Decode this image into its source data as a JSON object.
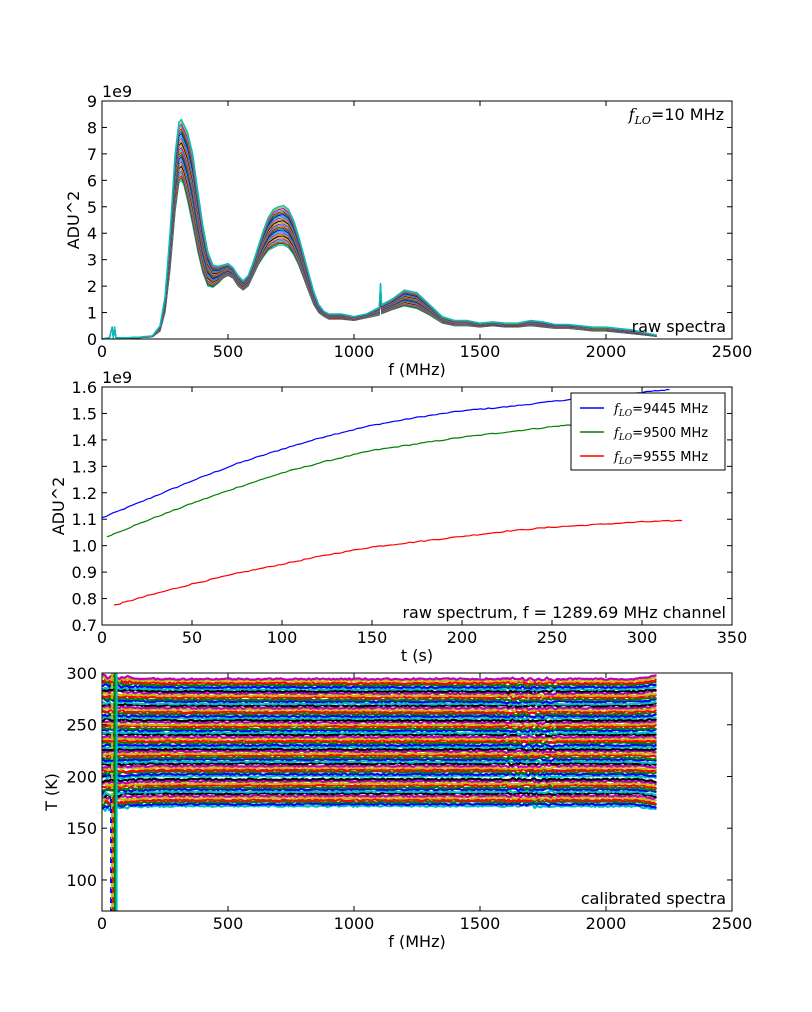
{
  "chart_data": [
    {
      "type": "line",
      "subtitle": "",
      "xlabel": "f (MHz)",
      "ylabel": "ADU^2",
      "y_exponent_label": "1e9",
      "xlim": [
        0,
        2500
      ],
      "ylim": [
        0,
        9
      ],
      "xticks": [
        "0",
        "500",
        "1000",
        "1500",
        "2000",
        "2500"
      ],
      "yticks": [
        "0",
        "1",
        "2",
        "3",
        "4",
        "5",
        "6",
        "7",
        "8",
        "9"
      ],
      "annotations": {
        "top_right_symbol": "f",
        "top_right_subscript": "LO",
        "top_right_text": "=10 MHz",
        "bottom_right": "raw spectra"
      },
      "grid": false,
      "note": "Many overlapping spectra (one per measurement), values in units of 1e9 ADU^2; envelope given by min and max series.",
      "x": [
        0,
        30,
        40,
        45,
        50,
        55,
        60,
        100,
        150,
        200,
        230,
        250,
        270,
        290,
        305,
        315,
        325,
        340,
        360,
        380,
        400,
        420,
        440,
        460,
        480,
        500,
        520,
        540,
        560,
        580,
        600,
        620,
        640,
        660,
        680,
        700,
        720,
        740,
        760,
        780,
        800,
        820,
        840,
        860,
        880,
        900,
        950,
        1000,
        1050,
        1100,
        1105,
        1110,
        1150,
        1200,
        1250,
        1300,
        1350,
        1400,
        1450,
        1500,
        1550,
        1600,
        1650,
        1700,
        1750,
        1800,
        1850,
        1900,
        1950,
        2000,
        2050,
        2100,
        2150,
        2200
      ],
      "series": [
        {
          "values": [
            0.0,
            0.05,
            0.45,
            0.05,
            0.45,
            0.05,
            0.05,
            0.05,
            0.05,
            0.08,
            0.3,
            1.0,
            2.6,
            4.8,
            5.9,
            6.0,
            5.8,
            5.2,
            4.3,
            3.3,
            2.5,
            2.0,
            1.95,
            2.1,
            2.3,
            2.4,
            2.3,
            2.0,
            1.85,
            2.0,
            2.4,
            2.8,
            3.1,
            3.35,
            3.45,
            3.55,
            3.55,
            3.45,
            3.2,
            2.8,
            2.3,
            1.8,
            1.3,
            1.0,
            0.85,
            0.75,
            0.75,
            0.7,
            0.8,
            0.9,
            1.8,
            0.95,
            1.1,
            1.25,
            1.15,
            0.9,
            0.6,
            0.5,
            0.5,
            0.45,
            0.5,
            0.45,
            0.45,
            0.5,
            0.45,
            0.4,
            0.4,
            0.35,
            0.3,
            0.3,
            0.25,
            0.2,
            0.15,
            0.1
          ]
        },
        {
          "values": [
            0.0,
            0.05,
            0.45,
            0.05,
            0.45,
            0.05,
            0.05,
            0.05,
            0.07,
            0.12,
            0.5,
            1.6,
            4.0,
            7.0,
            8.2,
            8.3,
            8.1,
            7.8,
            7.0,
            5.6,
            4.3,
            3.3,
            2.8,
            2.75,
            2.8,
            2.85,
            2.7,
            2.4,
            2.2,
            2.4,
            2.9,
            3.5,
            4.1,
            4.6,
            4.9,
            5.0,
            5.05,
            4.9,
            4.5,
            3.9,
            3.2,
            2.5,
            1.8,
            1.3,
            1.05,
            0.95,
            0.95,
            0.85,
            0.95,
            1.2,
            2.1,
            1.3,
            1.5,
            1.85,
            1.75,
            1.3,
            0.85,
            0.7,
            0.7,
            0.6,
            0.65,
            0.6,
            0.6,
            0.7,
            0.65,
            0.55,
            0.55,
            0.5,
            0.45,
            0.45,
            0.4,
            0.35,
            0.25,
            0.15
          ]
        }
      ]
    },
    {
      "type": "line",
      "xlabel": "t (s)",
      "ylabel": "ADU^2",
      "y_exponent_label": "1e9",
      "xlim": [
        0,
        350
      ],
      "ylim": [
        0.7,
        1.6
      ],
      "xticks": [
        "0",
        "50",
        "100",
        "150",
        "200",
        "250",
        "300",
        "350"
      ],
      "yticks": [
        "0.7",
        "0.8",
        "0.9",
        "1.0",
        "1.1",
        "1.2",
        "1.3",
        "1.4",
        "1.5",
        "1.6"
      ],
      "annotations": {
        "bottom_right": "raw spectrum, f = 1289.69 MHz channel"
      },
      "legend_placement": "top-right",
      "grid": false,
      "series": [
        {
          "name_symbol": "f",
          "name_subscript": "LO",
          "name": "=9445 MHz",
          "color": "#0000ff",
          "x": [
            0,
            25,
            50,
            75,
            100,
            125,
            150,
            175,
            200,
            225,
            250,
            275,
            300,
            315
          ],
          "values": [
            1.105,
            1.175,
            1.245,
            1.31,
            1.365,
            1.415,
            1.455,
            1.485,
            1.51,
            1.525,
            1.545,
            1.565,
            1.58,
            1.59
          ]
        },
        {
          "name_symbol": "f",
          "name_subscript": "LO",
          "name": "=9500 MHz",
          "color": "#008000",
          "x": [
            3,
            25,
            50,
            75,
            100,
            125,
            150,
            175,
            200,
            225,
            250,
            265
          ],
          "values": [
            1.035,
            1.095,
            1.16,
            1.22,
            1.275,
            1.32,
            1.36,
            1.385,
            1.41,
            1.43,
            1.45,
            1.46
          ]
        },
        {
          "name_symbol": "f",
          "name_subscript": "LO",
          "name": "=9555 MHz",
          "color": "#ff0000",
          "x": [
            7,
            25,
            50,
            75,
            100,
            125,
            150,
            175,
            200,
            225,
            250,
            275,
            300,
            322
          ],
          "values": [
            0.775,
            0.81,
            0.855,
            0.895,
            0.93,
            0.965,
            0.995,
            1.015,
            1.035,
            1.055,
            1.07,
            1.08,
            1.09,
            1.095
          ]
        }
      ]
    },
    {
      "type": "line",
      "xlabel": "f (MHz)",
      "ylabel": "T (K)",
      "xlim": [
        0,
        2500
      ],
      "ylim": [
        70,
        300
      ],
      "xticks": [
        "0",
        "500",
        "1000",
        "1500",
        "2000",
        "2500"
      ],
      "yticks": [
        "100",
        "150",
        "200",
        "250",
        "300"
      ],
      "annotations": {
        "bottom_right": "calibrated spectra"
      },
      "grid": false,
      "note": "Many flat calibrated spectra between ~170 K and ~300 K over 0-2200 MHz, with large spikes near 35-55 MHz.",
      "f_range": [
        0,
        2200
      ],
      "levels_K": [
        172,
        176,
        180,
        184,
        188,
        192,
        196,
        201,
        205,
        209,
        213,
        217,
        221,
        225,
        229,
        233,
        237,
        241,
        245,
        249,
        253,
        257,
        261,
        265,
        269,
        273,
        277,
        281,
        285,
        289,
        293
      ],
      "colors": [
        "#00bfbf",
        "#0000ff",
        "#008000",
        "#ff0000",
        "#bfbf00",
        "#bf00bf",
        "#000000"
      ]
    }
  ]
}
